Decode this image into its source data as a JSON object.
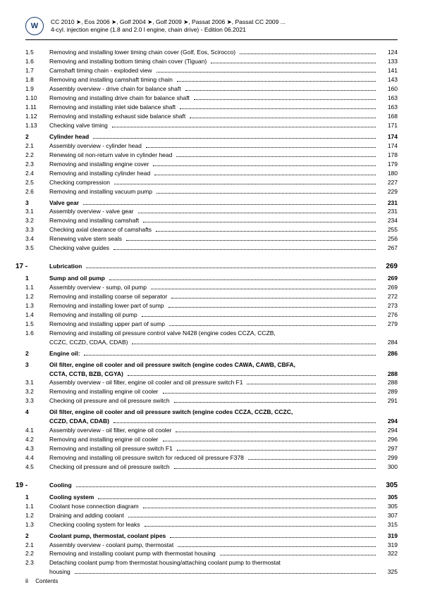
{
  "header": {
    "line1": "CC 2010 ➤, Eos 2006 ➤, Golf 2004 ➤, Golf 2009 ➤, Passat 2006 ➤, Passat CC 2009 ...",
    "line2": "4-cyl. injection engine (1.8 and 2.0 l engine, chain drive) - Edition 06.2021"
  },
  "sections": [
    {
      "type": "item",
      "num": "1.5",
      "title": "Removing and installing lower timing chain cover (Golf, Eos, Scirocco)",
      "page": "124"
    },
    {
      "type": "item",
      "num": "1.6",
      "title": "Removing and installing bottom timing chain cover (Tiguan)",
      "page": "133"
    },
    {
      "type": "item",
      "num": "1.7",
      "title": "Camshaft timing chain - exploded view",
      "page": "141"
    },
    {
      "type": "item",
      "num": "1.8",
      "title": "Removing and installing camshaft timing chain",
      "page": "143"
    },
    {
      "type": "item",
      "num": "1.9",
      "title": "Assembly overview - drive chain for balance shaft",
      "page": "160"
    },
    {
      "type": "item",
      "num": "1.10",
      "title": "Removing and installing drive chain for balance shaft",
      "page": "163"
    },
    {
      "type": "item",
      "num": "1.11",
      "title": "Removing and installing inlet side balance shaft",
      "page": "163"
    },
    {
      "type": "item",
      "num": "1.12",
      "title": "Removing and installing exhaust side balance shaft",
      "page": "168"
    },
    {
      "type": "item",
      "num": "1.13",
      "title": "Checking valve timing",
      "page": "171"
    },
    {
      "type": "gap"
    },
    {
      "type": "bold",
      "num": "2",
      "title": "Cylinder head",
      "page": "174"
    },
    {
      "type": "item",
      "num": "2.1",
      "title": "Assembly overview - cylinder head",
      "page": "174"
    },
    {
      "type": "item",
      "num": "2.2",
      "title": "Renewing oil non-return valve in cylinder head",
      "page": "178"
    },
    {
      "type": "item",
      "num": "2.3",
      "title": "Removing and installing engine cover",
      "page": "179"
    },
    {
      "type": "item",
      "num": "2.4",
      "title": "Removing and installing cylinder head",
      "page": "180"
    },
    {
      "type": "item",
      "num": "2.5",
      "title": "Checking compression",
      "page": "227"
    },
    {
      "type": "item",
      "num": "2.6",
      "title": "Removing and installing vacuum pump",
      "page": "229"
    },
    {
      "type": "gap"
    },
    {
      "type": "bold",
      "num": "3",
      "title": "Valve gear",
      "page": "231"
    },
    {
      "type": "item",
      "num": "3.1",
      "title": "Assembly overview - valve gear",
      "page": "231"
    },
    {
      "type": "item",
      "num": "3.2",
      "title": "Removing and installing camshaft",
      "page": "234"
    },
    {
      "type": "item",
      "num": "3.3",
      "title": "Checking axial clearance of camshafts",
      "page": "255"
    },
    {
      "type": "item",
      "num": "3.4",
      "title": "Renewing valve stem seals",
      "page": "256"
    },
    {
      "type": "item",
      "num": "3.5",
      "title": "Checking valve guides",
      "page": "267"
    },
    {
      "type": "chapter",
      "num": "17 -",
      "title": "Lubrication",
      "page": "269"
    },
    {
      "type": "bold",
      "num": "1",
      "title": "Sump and oil pump",
      "page": "269"
    },
    {
      "type": "item",
      "num": "1.1",
      "title": "Assembly overview - sump, oil pump",
      "page": "269"
    },
    {
      "type": "item",
      "num": "1.2",
      "title": "Removing and installing coarse oil separator",
      "page": "272"
    },
    {
      "type": "item",
      "num": "1.3",
      "title": "Removing and installing lower part of sump",
      "page": "273"
    },
    {
      "type": "item",
      "num": "1.4",
      "title": "Removing and installing oil pump",
      "page": "276"
    },
    {
      "type": "item",
      "num": "1.5",
      "title": "Removing and installing upper part of sump",
      "page": "279"
    },
    {
      "type": "multi",
      "num": "1.6",
      "title": "Removing and installing oil pressure control valve N428 (engine codes CCZA, CCZB,",
      "cont": "CCZC, CCZD, CDAA, CDAB)",
      "page": "284"
    },
    {
      "type": "gap"
    },
    {
      "type": "bold",
      "num": "2",
      "title": "Engine oil:",
      "page": "286"
    },
    {
      "type": "gap"
    },
    {
      "type": "boldmulti",
      "num": "3",
      "title": "Oil filter, engine oil cooler and oil pressure switch (engine codes CAWA, CAWB, CBFA,",
      "cont": "CCTA, CCTB, BZB, CGYA)",
      "page": "288"
    },
    {
      "type": "item",
      "num": "3.1",
      "title": "Assembly overview - oil filter, engine oil cooler and oil pressure switch F1",
      "page": "288"
    },
    {
      "type": "item",
      "num": "3.2",
      "title": "Removing and installing engine oil cooler",
      "page": "289"
    },
    {
      "type": "item",
      "num": "3.3",
      "title": "Checking oil pressure and oil pressure switch",
      "page": "291"
    },
    {
      "type": "gap"
    },
    {
      "type": "boldmulti",
      "num": "4",
      "title": "Oil filter, engine oil cooler and oil pressure switch (engine codes CCZA, CCZB, CCZC,",
      "cont": "CCZD, CDAA, CDAB)",
      "page": "294"
    },
    {
      "type": "item",
      "num": "4.1",
      "title": "Assembly overview - oil filter, engine oil cooler",
      "page": "294"
    },
    {
      "type": "item",
      "num": "4.2",
      "title": "Removing and installing engine oil cooler",
      "page": "296"
    },
    {
      "type": "item",
      "num": "4.3",
      "title": "Removing and installing oil pressure switch F1",
      "page": "297"
    },
    {
      "type": "item",
      "num": "4.4",
      "title": "Removing and installing oil pressure switch for reduced oil pressure F378",
      "page": "299"
    },
    {
      "type": "item",
      "num": "4.5",
      "title": "Checking oil pressure and oil pressure switch",
      "page": "300"
    },
    {
      "type": "chapter",
      "num": "19 -",
      "title": "Cooling",
      "page": "305"
    },
    {
      "type": "bold",
      "num": "1",
      "title": "Cooling system",
      "page": "305"
    },
    {
      "type": "item",
      "num": "1.1",
      "title": "Coolant hose connection diagram",
      "page": "305"
    },
    {
      "type": "item",
      "num": "1.2",
      "title": "Draining and adding coolant",
      "page": "307"
    },
    {
      "type": "item",
      "num": "1.3",
      "title": "Checking cooling system for leaks",
      "page": "315"
    },
    {
      "type": "gap"
    },
    {
      "type": "bold",
      "num": "2",
      "title": "Coolant pump, thermostat, coolant pipes",
      "page": "319"
    },
    {
      "type": "item",
      "num": "2.1",
      "title": "Assembly overview - coolant pump, thermostat",
      "page": "319"
    },
    {
      "type": "item",
      "num": "2.2",
      "title": "Removing and installing coolant pump with thermostat housing",
      "page": "322"
    },
    {
      "type": "multi",
      "num": "2.3",
      "title": "Detaching coolant pump from thermostat housing/attaching coolant pump to thermostat",
      "cont": "housing",
      "page": "325"
    }
  ],
  "footer": {
    "page": "ii",
    "label": "Contents"
  }
}
